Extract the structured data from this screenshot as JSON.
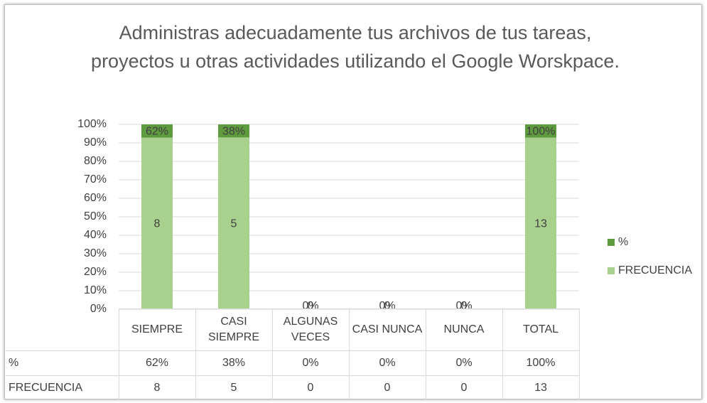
{
  "chart_data": {
    "type": "bar",
    "stacking": "percent",
    "title": "Administras adecuadamente tus archivos de tus tareas, proyectos u otras actividades utilizando el Google Worskpace.",
    "categories": [
      "SIEMPRE",
      "CASI SIEMPRE",
      "ALGUNAS VECES",
      "CASI NUNCA",
      "NUNCA",
      "TOTAL"
    ],
    "series": [
      {
        "name": "FRECUENCIA",
        "color": "#a9d18e",
        "values": [
          8,
          5,
          0,
          0,
          0,
          13
        ]
      },
      {
        "name": "%",
        "color": "#5e9a3e",
        "values": [
          0.62,
          0.38,
          0,
          0,
          0,
          1
        ],
        "value_labels": [
          "62%",
          "38%",
          "0%",
          "0%",
          "0%",
          "100%"
        ]
      }
    ],
    "ylim": [
      0,
      1
    ],
    "yticks": [
      {
        "value": 0,
        "label": "0%"
      },
      {
        "value": 0.1,
        "label": "10%"
      },
      {
        "value": 0.2,
        "label": "20%"
      },
      {
        "value": 0.3,
        "label": "30%"
      },
      {
        "value": 0.4,
        "label": "40%"
      },
      {
        "value": 0.5,
        "label": "50%"
      },
      {
        "value": 0.6,
        "label": "60%"
      },
      {
        "value": 0.7,
        "label": "70%"
      },
      {
        "value": 0.8,
        "label": "80%"
      },
      {
        "value": 0.9,
        "label": "90%"
      },
      {
        "value": 1,
        "label": "100%"
      }
    ],
    "grid": true,
    "legend": "right",
    "data_table": true
  }
}
